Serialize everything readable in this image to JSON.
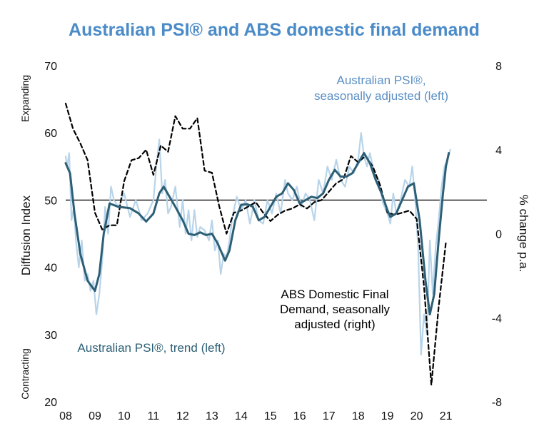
{
  "chart_data": {
    "type": "line",
    "title": "Australian PSI® and ABS domestic final demand",
    "ylabel_left": "Diffusion Index",
    "ylabel_right": "% change p.a.",
    "label_top_left": "Expanding",
    "label_bottom_left": "Contracting",
    "x_ticks": [
      "08",
      "09",
      "10",
      "11",
      "12",
      "13",
      "14",
      "15",
      "16",
      "17",
      "18",
      "19",
      "20",
      "21"
    ],
    "y_left_ticks": [
      20,
      30,
      40,
      50,
      60,
      70
    ],
    "y_right_ticks": [
      "-8",
      "-4",
      "0",
      "4",
      "8"
    ],
    "ylim_left": [
      20,
      70
    ],
    "ylim_right": [
      -8,
      8
    ],
    "reference_line": 50,
    "annotations": {
      "sa": [
        "Australian PSI®,",
        "seasonally adjusted (left)"
      ],
      "trend": [
        "Australian PSI®, trend (left)"
      ],
      "dfd": [
        "ABS Domestic Final",
        "Demand, seasonally",
        "adjusted (right)"
      ]
    },
    "colors": {
      "title": "#4a8bc8",
      "sa": "#b8d4ea",
      "trend": "#2c5f75",
      "dfd": "#000000",
      "sa_text": "#5b8fc4",
      "trend_text": "#2c5f75"
    },
    "series": [
      {
        "key": "trend",
        "axis": "left",
        "x": [
          2008.0,
          2008.15,
          2008.3,
          2008.5,
          2008.75,
          2009.0,
          2009.15,
          2009.3,
          2009.5,
          2009.8,
          2010.2,
          2010.5,
          2010.75,
          2011.0,
          2011.2,
          2011.35,
          2011.55,
          2011.75,
          2012.0,
          2012.2,
          2012.4,
          2012.6,
          2012.8,
          2013.0,
          2013.2,
          2013.45,
          2013.6,
          2013.8,
          2014.0,
          2014.2,
          2014.4,
          2014.6,
          2014.8,
          2015.0,
          2015.2,
          2015.4,
          2015.6,
          2015.8,
          2016.0,
          2016.2,
          2016.4,
          2016.6,
          2016.8,
          2017.0,
          2017.2,
          2017.4,
          2017.6,
          2017.8,
          2018.0,
          2018.2,
          2018.4,
          2018.6,
          2018.8,
          2019.0,
          2019.1,
          2019.3,
          2019.5,
          2019.7,
          2019.9,
          2020.1,
          2020.3,
          2020.45,
          2020.6,
          2020.75,
          2020.9,
          2021.0,
          2021.1
        ],
        "values": [
          55.5,
          54.0,
          48.0,
          42.0,
          38.0,
          36.5,
          39.0,
          45.0,
          49.5,
          49.0,
          48.8,
          48.0,
          46.8,
          48.0,
          51.0,
          52.0,
          50.5,
          49.0,
          47.0,
          45.0,
          44.8,
          45.2,
          44.8,
          45.0,
          43.5,
          41.0,
          42.5,
          47.0,
          49.3,
          49.4,
          49.0,
          47.0,
          47.5,
          49.0,
          50.5,
          51.0,
          52.5,
          51.5,
          49.5,
          50.0,
          50.5,
          50.3,
          51.0,
          53.0,
          54.5,
          53.5,
          53.5,
          54.0,
          55.5,
          57.0,
          55.5,
          53.0,
          51.0,
          48.5,
          47.5,
          48.0,
          50.0,
          52.0,
          52.5,
          47.0,
          38.0,
          33.0,
          36.0,
          44.0,
          51.0,
          55.0,
          57.0
        ]
      },
      {
        "key": "sa",
        "axis": "left",
        "x": [
          2008.0,
          2008.05,
          2008.12,
          2008.2,
          2008.28,
          2008.35,
          2008.45,
          2008.55,
          2008.65,
          2008.75,
          2008.85,
          2008.95,
          2009.05,
          2009.15,
          2009.25,
          2009.35,
          2009.45,
          2009.55,
          2009.65,
          2009.8,
          2010.0,
          2010.2,
          2010.4,
          2010.6,
          2010.8,
          2011.0,
          2011.1,
          2011.2,
          2011.3,
          2011.4,
          2011.5,
          2011.6,
          2011.75,
          2011.9,
          2012.0,
          2012.1,
          2012.2,
          2012.3,
          2012.4,
          2012.5,
          2012.6,
          2012.75,
          2012.9,
          2013.0,
          2013.1,
          2013.2,
          2013.3,
          2013.4,
          2013.5,
          2013.6,
          2013.7,
          2013.85,
          2014.0,
          2014.15,
          2014.3,
          2014.45,
          2014.6,
          2014.75,
          2014.9,
          2015.05,
          2015.2,
          2015.35,
          2015.5,
          2015.6,
          2015.75,
          2015.9,
          2016.05,
          2016.2,
          2016.35,
          2016.5,
          2016.65,
          2016.8,
          2016.95,
          2017.1,
          2017.25,
          2017.4,
          2017.55,
          2017.7,
          2017.85,
          2018.0,
          2018.1,
          2018.2,
          2018.3,
          2018.4,
          2018.55,
          2018.7,
          2018.85,
          2019.0,
          2019.1,
          2019.2,
          2019.3,
          2019.45,
          2019.6,
          2019.75,
          2019.85,
          2019.95,
          2020.05,
          2020.15,
          2020.25,
          2020.35,
          2020.45,
          2020.55,
          2020.65,
          2020.75,
          2020.85,
          2020.95,
          2021.05,
          2021.15
        ],
        "values": [
          56.5,
          55.0,
          57.0,
          47.0,
          49.0,
          44.0,
          40.0,
          44.0,
          38.0,
          39.0,
          36.5,
          38.0,
          33.0,
          36.0,
          41.0,
          49.0,
          45.0,
          52.0,
          50.0,
          49.0,
          51.0,
          47.5,
          50.0,
          47.0,
          48.0,
          50.0,
          55.0,
          59.0,
          51.0,
          53.0,
          48.0,
          49.0,
          52.0,
          46.0,
          50.0,
          45.0,
          48.5,
          44.0,
          48.5,
          44.5,
          46.0,
          45.5,
          44.0,
          47.0,
          42.5,
          44.0,
          39.0,
          42.0,
          41.5,
          44.0,
          47.5,
          50.5,
          48.5,
          50.0,
          46.5,
          50.0,
          47.0,
          46.5,
          50.0,
          48.0,
          51.0,
          48.0,
          53.0,
          51.0,
          50.0,
          52.0,
          49.0,
          51.0,
          50.0,
          47.0,
          53.0,
          51.0,
          55.0,
          53.0,
          56.0,
          53.0,
          52.0,
          55.0,
          54.0,
          56.0,
          60.0,
          56.5,
          55.0,
          57.0,
          54.0,
          53.0,
          49.5,
          48.0,
          46.5,
          51.0,
          48.0,
          50.0,
          53.0,
          52.0,
          55.0,
          50.0,
          43.0,
          27.0,
          33.0,
          30.0,
          44.0,
          36.0,
          43.0,
          47.0,
          52.0,
          55.0,
          56.0,
          57.5
        ]
      },
      {
        "key": "dfd",
        "axis": "right",
        "x": [
          2008.0,
          2008.25,
          2008.5,
          2008.75,
          2009.0,
          2009.25,
          2009.5,
          2009.75,
          2010.0,
          2010.25,
          2010.5,
          2010.75,
          2011.0,
          2011.25,
          2011.5,
          2011.75,
          2012.0,
          2012.25,
          2012.5,
          2012.75,
          2013.0,
          2013.25,
          2013.5,
          2013.75,
          2014.0,
          2014.25,
          2014.5,
          2014.75,
          2015.0,
          2015.25,
          2015.5,
          2015.75,
          2016.0,
          2016.25,
          2016.5,
          2016.75,
          2017.0,
          2017.25,
          2017.5,
          2017.75,
          2018.0,
          2018.25,
          2018.5,
          2018.75,
          2019.0,
          2019.25,
          2019.5,
          2019.75,
          2020.0,
          2020.25,
          2020.5,
          2020.75,
          2021.0
        ],
        "values": [
          6.2,
          5.0,
          4.3,
          3.5,
          1.0,
          0.2,
          0.4,
          0.4,
          2.5,
          3.5,
          3.6,
          4.0,
          2.8,
          4.2,
          3.9,
          5.6,
          5.0,
          5.0,
          5.5,
          3.0,
          2.9,
          1.3,
          0.0,
          1.0,
          1.1,
          1.3,
          1.5,
          1.0,
          0.6,
          0.9,
          1.1,
          1.2,
          1.4,
          1.2,
          1.5,
          1.6,
          2.0,
          2.4,
          2.6,
          3.7,
          3.4,
          3.7,
          3.2,
          2.3,
          1.0,
          0.9,
          1.0,
          1.1,
          0.7,
          -2.5,
          -7.2,
          -3.5,
          -0.4
        ]
      }
    ]
  }
}
